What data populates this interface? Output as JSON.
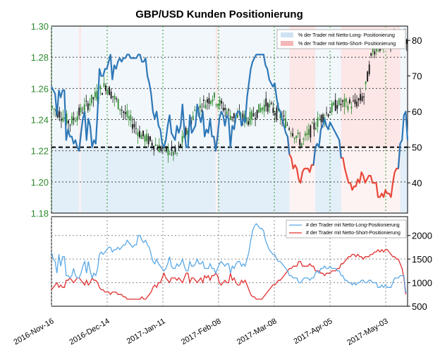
{
  "chart_data": [
    {
      "type": "line",
      "title": "GBP/USD Kunden Positionierung",
      "x_ticks": [
        "2016-Nov-16",
        "2016-Dec-14",
        "2017-Jan-11",
        "2017-Feb-08",
        "2017-Mar-08",
        "2017-Apr-05",
        "2017-May-03"
      ],
      "left_axis": {
        "ylim": [
          1.18,
          1.3
        ],
        "ticks": [
          "1.30",
          "1.28",
          "1.26",
          "1.24",
          "1.22",
          "1.20",
          "1.18"
        ],
        "color": "#2e8b2e"
      },
      "right_axis": {
        "ylim": [
          31.5,
          84
        ],
        "ticks": [
          "80",
          "70",
          "60",
          "50",
          "40"
        ]
      },
      "reference_line": 50,
      "legend": {
        "placement": "top-right",
        "entries": [
          "% der Trader mit Netto-Long- Positionierung",
          "% der Trader mit Netto-Short- Positionierung"
        ]
      },
      "series": [
        {
          "axis": "right",
          "color": "#2e78b7",
          "values": [
            67,
            66,
            65,
            59,
            66,
            64,
            66,
            66,
            52,
            55,
            53,
            53,
            51,
            52,
            50,
            49,
            54,
            58,
            60,
            52,
            58,
            56,
            50,
            52,
            51,
            60,
            72,
            70,
            70,
            72,
            72,
            74,
            76,
            69,
            73,
            72,
            74,
            75,
            74,
            75,
            75,
            76,
            76,
            75,
            75,
            75,
            75,
            76,
            76,
            74,
            74,
            75,
            70,
            68,
            65,
            60,
            58,
            60,
            56,
            55,
            51,
            50,
            52,
            56,
            59,
            54,
            53,
            52,
            56,
            54,
            56,
            62,
            55,
            50,
            50,
            59,
            54,
            55,
            56,
            62,
            59,
            57,
            60,
            53,
            55,
            54,
            58,
            53,
            53,
            49,
            53,
            58,
            60,
            59,
            56,
            59,
            58,
            50,
            56,
            55,
            59,
            60,
            60,
            56,
            58,
            57,
            64,
            68,
            72,
            74,
            75,
            76,
            76,
            76,
            76,
            76,
            73,
            72,
            69,
            68,
            67,
            68,
            64,
            61,
            60,
            58,
            56,
            54,
            53,
            48,
            47,
            44,
            45,
            44,
            41,
            40,
            43,
            44,
            44,
            44,
            43,
            45,
            45,
            50,
            51,
            50,
            55,
            56,
            58,
            56,
            55,
            57,
            56,
            55,
            54,
            53,
            52,
            47,
            47,
            44,
            42,
            40,
            40,
            38,
            39,
            39,
            41,
            40,
            43,
            42,
            40,
            41,
            42,
            42,
            40,
            40,
            40,
            36,
            36,
            37,
            36,
            38,
            37,
            37,
            36,
            40,
            43,
            44,
            44,
            51,
            52,
            59,
            60,
            52
          ]
        }
      ],
      "candles": {
        "axis": "left",
        "count": 200,
        "note": "daily GBP/USD OHLC candlesticks, range about 1.200 to 1.293"
      }
    },
    {
      "type": "line",
      "legend": {
        "placement": "top-right",
        "entries": [
          "# der Trader mit Netto-Long-Positionierung",
          "# der Trader mit Netto-Short-Positionierung"
        ]
      },
      "right_axis": {
        "ylim": [
          500,
          2400
        ],
        "ticks": [
          "2000",
          "1500",
          "1000",
          "500"
        ]
      },
      "series": [
        {
          "color": "#5aa8e6",
          "values": [
            1650,
            1500,
            1450,
            1200,
            1600,
            1350,
            1550,
            1550,
            1150,
            1150,
            1100,
            1150,
            1300,
            1150,
            1100,
            1100,
            1200,
            1350,
            1450,
            1200,
            1450,
            1250,
            1100,
            1200,
            1150,
            1300,
            1600,
            1650,
            1600,
            1650,
            1700,
            1750,
            1750,
            1650,
            1700,
            1700,
            1750,
            1700,
            1750,
            1800,
            1800,
            1900,
            1850,
            1800,
            1750,
            1800,
            1800,
            2000,
            2000,
            1900,
            1850,
            1900,
            1800,
            1750,
            1600,
            1450,
            1400,
            1500,
            1400,
            1350,
            1300,
            1250,
            1300,
            1400,
            1550,
            1350,
            1300,
            1300,
            1400,
            1350,
            1400,
            1500,
            1350,
            1250,
            1250,
            1450,
            1350,
            1350,
            1400,
            1500,
            1400,
            1400,
            1450,
            1300,
            1300,
            1300,
            1400,
            1300,
            1300,
            1200,
            1300,
            1400,
            1450,
            1400,
            1350,
            1400,
            1400,
            1200,
            1350,
            1300,
            1400,
            1450,
            1450,
            1350,
            1400,
            1350,
            1500,
            1650,
            1900,
            2100,
            2200,
            2250,
            2200,
            2150,
            2150,
            2100,
            1900,
            1800,
            1700,
            1650,
            1600,
            1600,
            1500,
            1450,
            1450,
            1400,
            1350,
            1300,
            1250,
            1150,
            1150,
            1100,
            1100,
            1100,
            1000,
            1000,
            1050,
            1100,
            1100,
            1100,
            1050,
            1100,
            1100,
            1200,
            1250,
            1200,
            1300,
            1300,
            1350,
            1300,
            1300,
            1350,
            1300,
            1300,
            1300,
            1250,
            1250,
            1150,
            1150,
            1050,
            1050,
            1000,
            1000,
            950,
            1000,
            950,
            1000,
            1000,
            1050,
            1050,
            1000,
            1000,
            1050,
            1050,
            1000,
            1000,
            1000,
            900,
            900,
            950,
            900,
            950,
            900,
            900,
            900,
            1000,
            1100,
            1100,
            1100,
            1150,
            1150,
            1150,
            800,
            800
          ]
        },
        {
          "color": "#e03030",
          "values": [
            850,
            900,
            950,
            1000,
            900,
            950,
            900,
            900,
            1050,
            1050,
            1100,
            1050,
            1000,
            1050,
            1100,
            1100,
            1050,
            1000,
            950,
            1050,
            950,
            1000,
            1100,
            1050,
            1050,
            1000,
            900,
            850,
            850,
            800,
            800,
            800,
            750,
            800,
            800,
            800,
            750,
            750,
            750,
            700,
            700,
            650,
            650,
            650,
            650,
            650,
            650,
            650,
            650,
            700,
            650,
            650,
            700,
            750,
            800,
            900,
            950,
            900,
            1000,
            1000,
            1100,
            1200,
            1100,
            1050,
            1000,
            1100,
            1100,
            1100,
            1050,
            1100,
            1050,
            1000,
            1100,
            1200,
            1200,
            1000,
            1100,
            1100,
            1050,
            1000,
            1050,
            1100,
            1000,
            1150,
            1100,
            1150,
            1050,
            1150,
            1150,
            1200,
            1150,
            1000,
            950,
            1000,
            1050,
            1000,
            1000,
            1200,
            1050,
            1100,
            1000,
            950,
            950,
            1050,
            1000,
            1050,
            950,
            850,
            750,
            700,
            700,
            650,
            650,
            650,
            650,
            700,
            750,
            800,
            850,
            900,
            950,
            950,
            1000,
            1050,
            1050,
            1100,
            1150,
            1200,
            1250,
            1300,
            1300,
            1350,
            1350,
            1350,
            1450,
            1450,
            1350,
            1350,
            1350,
            1350,
            1400,
            1350,
            1350,
            1250,
            1250,
            1250,
            1200,
            1200,
            1150,
            1200,
            1200,
            1200,
            1250,
            1250,
            1250,
            1300,
            1300,
            1400,
            1400,
            1450,
            1500,
            1550,
            1550,
            1600,
            1600,
            1550,
            1600,
            1550,
            1550,
            1500,
            1550,
            1550,
            1550,
            1600,
            1600,
            1650,
            1650,
            1700,
            1650,
            1700,
            1650,
            1700,
            1700,
            1650,
            1600,
            1550,
            1550,
            1500,
            1500,
            1400,
            1300,
            1100,
            750
          ]
        }
      ]
    }
  ]
}
